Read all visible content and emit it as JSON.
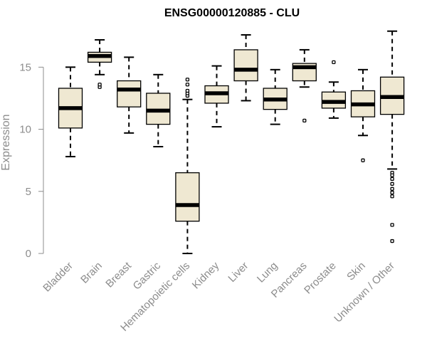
{
  "chart_data": {
    "type": "boxplot",
    "title": "ENSG00000120885 - CLU",
    "xlabel": "",
    "ylabel": "Expression",
    "ylim": [
      0,
      18
    ],
    "yticks": [
      0,
      5,
      10,
      15
    ],
    "box_fill": "#efe8d2",
    "categories": [
      "Bladder",
      "Brain",
      "Breast",
      "Gastric",
      "Hematopoietic cells",
      "Kidney",
      "Liver",
      "Lung",
      "Pancreas",
      "Prostate",
      "Skin",
      "Unknown / Other"
    ],
    "boxes": [
      {
        "category": "Bladder",
        "whisker_low": 7.8,
        "q1": 10.1,
        "median": 11.7,
        "q3": 13.3,
        "whisker_high": 15.0,
        "outliers": []
      },
      {
        "category": "Brain",
        "whisker_low": 14.4,
        "q1": 15.4,
        "median": 15.9,
        "q3": 16.2,
        "whisker_high": 17.2,
        "outliers": [
          13.4,
          13.6
        ]
      },
      {
        "category": "Breast",
        "whisker_low": 9.7,
        "q1": 11.8,
        "median": 13.2,
        "q3": 13.9,
        "whisker_high": 15.8,
        "outliers": []
      },
      {
        "category": "Gastric",
        "whisker_low": 8.6,
        "q1": 10.4,
        "median": 11.5,
        "q3": 12.9,
        "whisker_high": 14.4,
        "outliers": []
      },
      {
        "category": "Hematopoietic cells",
        "whisker_low": 0.0,
        "q1": 2.6,
        "median": 3.9,
        "q3": 6.5,
        "whisker_high": 12.4,
        "outliers": [
          12.7,
          12.9,
          13.1,
          13.6,
          14.0
        ]
      },
      {
        "category": "Kidney",
        "whisker_low": 10.2,
        "q1": 12.1,
        "median": 12.9,
        "q3": 13.5,
        "whisker_high": 15.1,
        "outliers": []
      },
      {
        "category": "Liver",
        "whisker_low": 12.3,
        "q1": 13.9,
        "median": 14.8,
        "q3": 16.4,
        "whisker_high": 17.6,
        "outliers": []
      },
      {
        "category": "Lung",
        "whisker_low": 10.4,
        "q1": 11.6,
        "median": 12.4,
        "q3": 13.3,
        "whisker_high": 14.8,
        "outliers": []
      },
      {
        "category": "Pancreas",
        "whisker_low": 13.4,
        "q1": 13.9,
        "median": 15.0,
        "q3": 15.3,
        "whisker_high": 16.4,
        "outliers": [
          10.7
        ]
      },
      {
        "category": "Prostate",
        "whisker_low": 10.9,
        "q1": 11.7,
        "median": 12.2,
        "q3": 13.0,
        "whisker_high": 13.8,
        "outliers": [
          15.4
        ]
      },
      {
        "category": "Skin",
        "whisker_low": 9.5,
        "q1": 11.0,
        "median": 12.0,
        "q3": 13.1,
        "whisker_high": 14.8,
        "outliers": [
          7.5
        ]
      },
      {
        "category": "Unknown / Other",
        "whisker_low": 6.8,
        "q1": 11.2,
        "median": 12.6,
        "q3": 14.2,
        "whisker_high": 17.9,
        "outliers": [
          6.5,
          6.3,
          6.0,
          5.6,
          5.2,
          4.9,
          4.6,
          2.3,
          1.0
        ]
      }
    ]
  }
}
